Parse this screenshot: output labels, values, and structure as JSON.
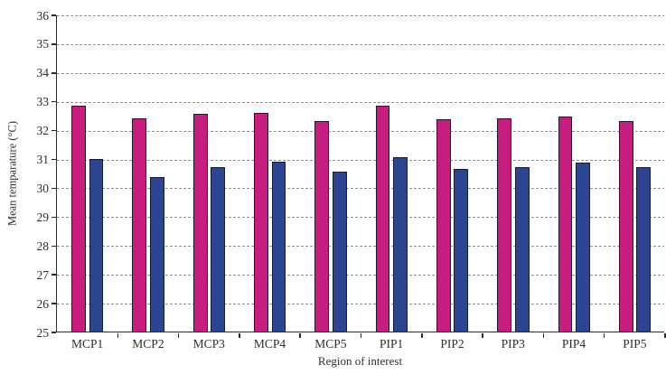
{
  "chart_data": {
    "type": "bar",
    "title": "",
    "xlabel": "Region of interest",
    "ylabel": "Mean temparature (°C)",
    "categories": [
      "MCP1",
      "MCP2",
      "MCP3",
      "MCP4",
      "MCP5",
      "PIP1",
      "PIP2",
      "PIP3",
      "PIP4",
      "PIP5"
    ],
    "series": [
      {
        "name": "pink-series",
        "color": "#C81C7F",
        "values": [
          32.85,
          32.4,
          32.55,
          32.6,
          32.3,
          32.85,
          32.35,
          32.4,
          32.45,
          32.3
        ]
      },
      {
        "name": "blue-series",
        "color": "#2B4592",
        "values": [
          31.0,
          30.35,
          30.7,
          30.9,
          30.55,
          31.05,
          30.65,
          30.7,
          30.85,
          30.7
        ]
      }
    ],
    "ylim": [
      25,
      36
    ],
    "ytick_step": 1,
    "grid": "horizontal-dotted",
    "legend": "none",
    "bar_outline_color": "#1c1c30",
    "gridline_color": "#8f8f8f",
    "axis_color": "#2b2b2b"
  }
}
